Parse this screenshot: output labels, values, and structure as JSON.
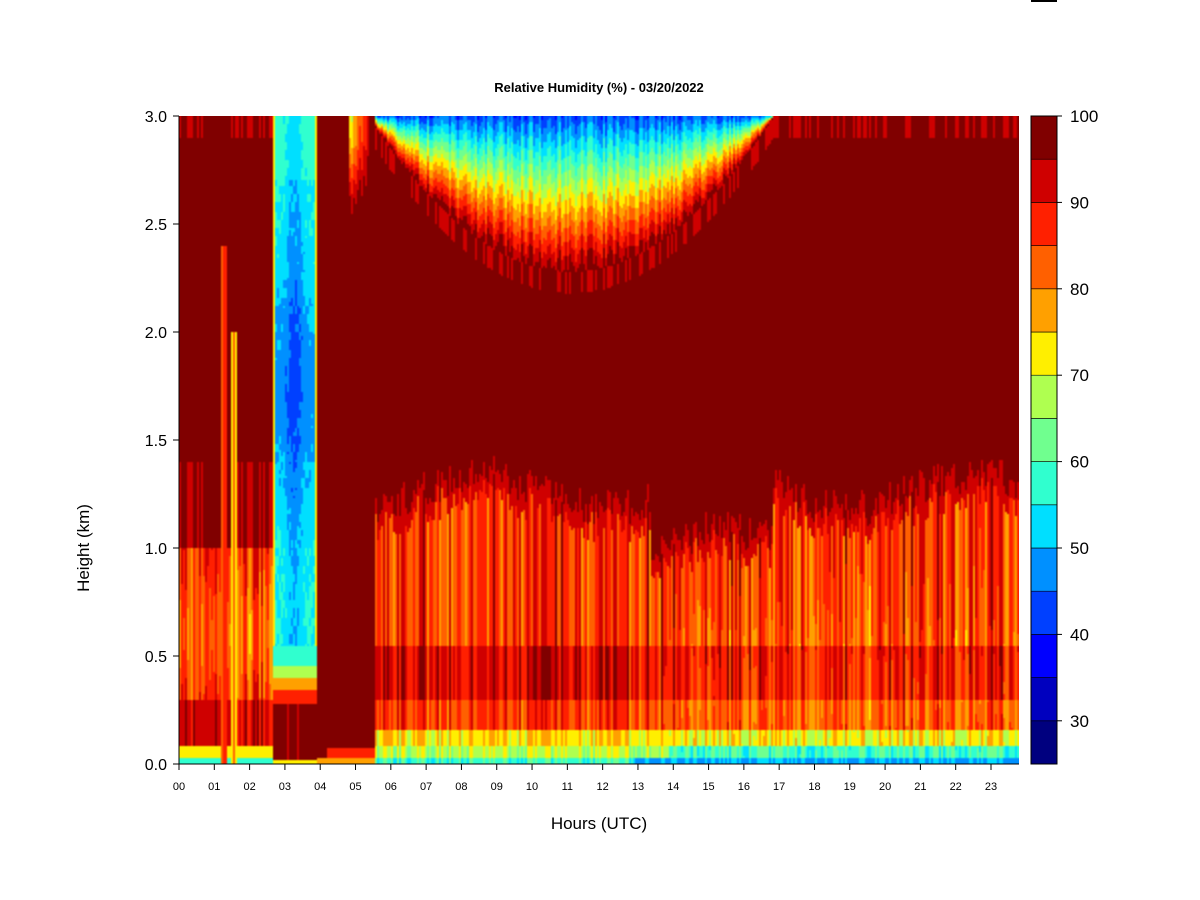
{
  "chart_data": {
    "type": "heatmap",
    "title": "Relative Humidity (%) - 03/20/2022",
    "xlabel": "Hours (UTC)",
    "ylabel": "Height (km)",
    "xlim": [
      0,
      24
    ],
    "ylim": [
      0,
      3
    ],
    "x_ticks": [
      0,
      1,
      2,
      3,
      4,
      5,
      6,
      7,
      8,
      9,
      10,
      11,
      12,
      13,
      14,
      15,
      16,
      17,
      18,
      19,
      20,
      21,
      22,
      23
    ],
    "x_tick_labels": [
      "00",
      "01",
      "02",
      "03",
      "04",
      "05",
      "06",
      "07",
      "08",
      "09",
      "10",
      "11",
      "12",
      "13",
      "14",
      "15",
      "16",
      "17",
      "18",
      "19",
      "20",
      "21",
      "22",
      "23"
    ],
    "y_ticks": [
      0,
      0.5,
      1.0,
      1.5,
      2.0,
      2.5,
      3.0
    ],
    "y_tick_labels": [
      "0.0",
      "0.5",
      "1.0",
      "1.5",
      "2.0",
      "2.5",
      "3.0"
    ],
    "colorbar": {
      "range": [
        25,
        100
      ],
      "tick_values": [
        30,
        40,
        50,
        60,
        70,
        80,
        90,
        100
      ],
      "tick_labels": [
        "30",
        "40",
        "50",
        "60",
        "70",
        "80",
        "90",
        "100"
      ],
      "levels": [
        {
          "from": 25,
          "to": 30,
          "color": "#00007F"
        },
        {
          "from": 30,
          "to": 35,
          "color": "#0000BF"
        },
        {
          "from": 35,
          "to": 40,
          "color": "#0000FF"
        },
        {
          "from": 40,
          "to": 45,
          "color": "#0040FF"
        },
        {
          "from": 45,
          "to": 50,
          "color": "#0090FF"
        },
        {
          "from": 50,
          "to": 55,
          "color": "#00DFFF"
        },
        {
          "from": 55,
          "to": 60,
          "color": "#30FFCF"
        },
        {
          "from": 60,
          "to": 65,
          "color": "#70FF8F"
        },
        {
          "from": 65,
          "to": 70,
          "color": "#AFFF50"
        },
        {
          "from": 70,
          "to": 75,
          "color": "#FFEF00"
        },
        {
          "from": 75,
          "to": 80,
          "color": "#FFA000"
        },
        {
          "from": 80,
          "to": 85,
          "color": "#FF6000"
        },
        {
          "from": 85,
          "to": 90,
          "color": "#FF2000"
        },
        {
          "from": 90,
          "to": 95,
          "color": "#CF0000"
        },
        {
          "from": 95,
          "to": 100,
          "color": "#800000"
        }
      ]
    },
    "grid": false,
    "legend": "colorbar-right",
    "features": [
      {
        "description": "dry column",
        "x_range": [
          2.7,
          3.9
        ],
        "y_range": [
          0.4,
          3.0
        ],
        "rh_min": 30
      },
      {
        "description": "dry upper layer",
        "x_range": [
          5.0,
          17.5
        ],
        "y_range": [
          2.3,
          3.0
        ],
        "rh_min": 40,
        "center_x": 11.2
      },
      {
        "description": "saturated layer",
        "x_range": [
          0,
          24
        ],
        "y_range": [
          1.3,
          2.3
        ],
        "rh": 100
      },
      {
        "description": "moist boundary layer",
        "x_range": [
          5.8,
          24
        ],
        "y_range": [
          0.0,
          1.2
        ],
        "rh_range": [
          55,
          95
        ]
      }
    ]
  }
}
